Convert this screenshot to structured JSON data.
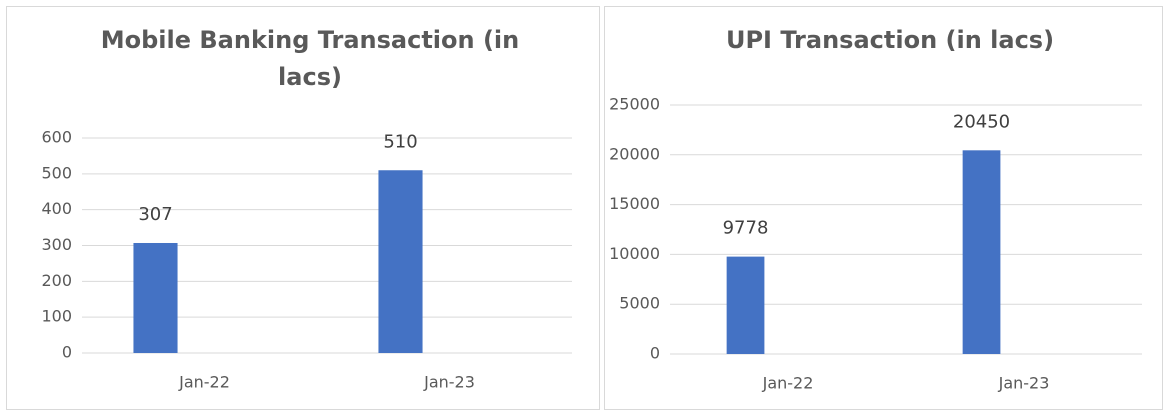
{
  "chart_data": [
    {
      "type": "bar",
      "title": "Mobile Banking Transaction (in lacs)",
      "categories": [
        "Jan-22",
        "Jan-23"
      ],
      "values": [
        307,
        510
      ],
      "color": "#4472c4",
      "ylim": [
        0,
        600
      ],
      "yticks": [
        0,
        100,
        200,
        300,
        400,
        500,
        600
      ],
      "grid": true
    },
    {
      "type": "bar",
      "title": "UPI Transaction (in lacs)",
      "categories": [
        "Jan-22",
        "Jan-23"
      ],
      "values": [
        9778,
        20450
      ],
      "color": "#4472c4",
      "ylim": [
        0,
        25000
      ],
      "yticks": [
        0,
        5000,
        10000,
        15000,
        20000,
        25000
      ],
      "grid": true
    }
  ]
}
